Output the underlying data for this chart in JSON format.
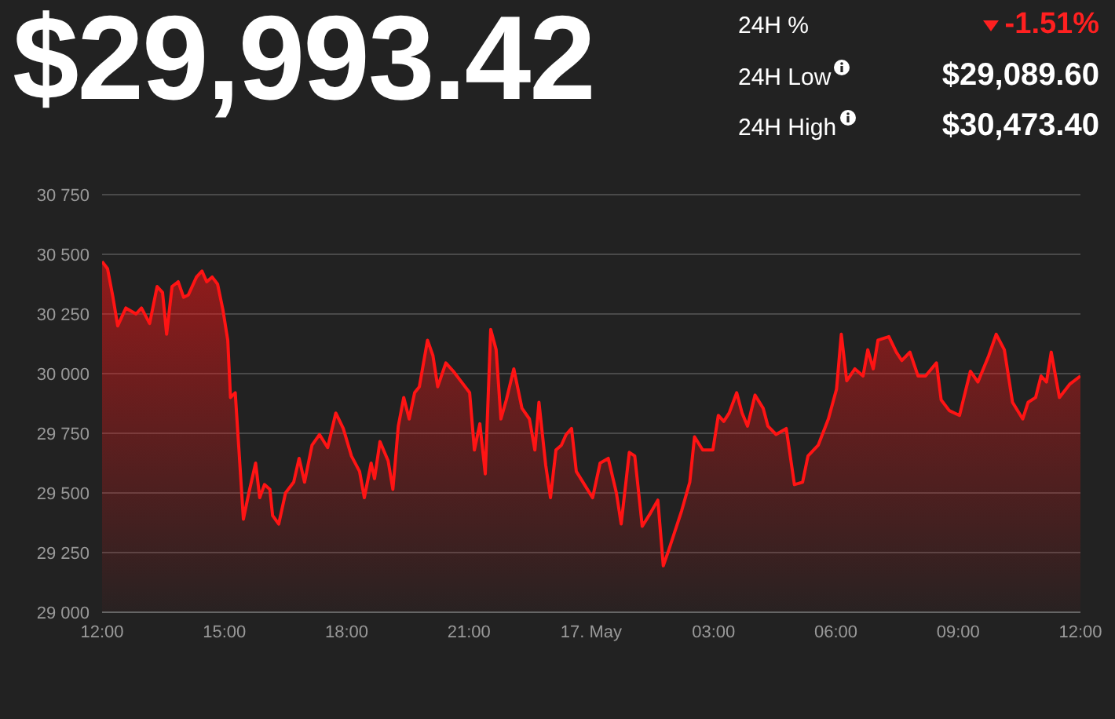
{
  "chart_data": {
    "type": "area",
    "title": "$29,993.42",
    "annotations": [
      "24H %",
      "-1.51%",
      "24H Low",
      "$29,089.60",
      "24H High",
      "$30,473.40"
    ],
    "x": [
      "--05-16T12:00",
      "--05-16T12:08",
      "--05-16T12:16",
      "--05-16T12:23",
      "--05-16T12:35",
      "--05-16T12:50",
      "--05-16T12:58",
      "--05-16T13:10",
      "--05-16T13:21",
      "--05-16T13:29",
      "--05-16T13:35",
      "--05-16T13:43",
      "--05-16T13:52",
      "--05-16T14:00",
      "--05-16T14:07",
      "--05-16T14:19",
      "--05-16T14:27",
      "--05-16T14:34",
      "--05-16T14:42",
      "--05-16T14:50",
      "--05-16T14:58",
      "--05-16T15:05",
      "--05-16T15:09",
      "--05-16T15:16",
      "--05-16T15:21",
      "--05-16T15:28",
      "--05-16T15:36",
      "--05-16T15:46",
      "--05-16T15:52",
      "--05-16T15:59",
      "--05-16T16:07",
      "--05-16T16:11",
      "--05-16T16:20",
      "--05-16T16:30",
      "--05-16T16:42",
      "--05-16T16:50",
      "--05-16T16:58",
      "--05-16T17:09",
      "--05-16T17:20",
      "--05-16T17:32",
      "--05-16T17:44",
      "--05-16T17:55",
      "--05-16T18:07",
      "--05-16T18:19",
      "--05-16T18:26",
      "--05-16T18:36",
      "--05-16T18:41",
      "--05-16T18:49",
      "--05-16T19:01",
      "--05-16T19:08",
      "--05-16T19:16",
      "--05-16T19:24",
      "--05-16T19:32",
      "--05-16T19:40",
      "--05-16T19:47",
      "--05-16T19:59",
      "--05-16T20:07",
      "--05-16T20:14",
      "--05-16T20:26",
      "--05-16T20:37",
      "--05-16T20:49",
      "--05-16T21:01",
      "--05-16T21:08",
      "--05-16T21:16",
      "--05-16T21:24",
      "--05-16T21:32",
      "--05-16T21:40",
      "--05-16T21:47",
      "--05-16T21:55",
      "--05-16T22:06",
      "--05-16T22:18",
      "--05-16T22:29",
      "--05-16T22:37",
      "--05-16T22:43",
      "--05-16T22:53",
      "--05-16T23:00",
      "--05-16T23:08",
      "--05-16T23:16",
      "--05-16T23:23",
      "--05-16T23:31",
      "--05-16T23:38",
      "--05-17T00:02",
      "--05-17T00:13",
      "--05-17T00:25",
      "--05-17T00:37",
      "--05-17T00:44",
      "--05-17T00:56",
      "--05-17T01:04",
      "--05-17T01:15",
      "--05-17T01:27",
      "--05-17T01:38",
      "--05-17T01:46",
      "--05-17T01:54",
      "--05-17T02:13",
      "--05-17T02:25",
      "--05-17T02:32",
      "--05-17T02:44",
      "--05-17T02:59",
      "--05-17T03:07",
      "--05-17T03:15",
      "--05-17T03:23",
      "--05-17T03:34",
      "--05-17T03:42",
      "--05-17T03:50",
      "--05-17T04:01",
      "--05-17T04:13",
      "--05-17T04:20",
      "--05-17T04:32",
      "--05-17T04:47",
      "--05-17T04:59",
      "--05-17T05:11",
      "--05-17T05:19",
      "--05-17T05:34",
      "--05-17T05:49",
      "--05-17T06:01",
      "--05-17T06:08",
      "--05-17T06:16",
      "--05-17T06:28",
      "--05-17T06:40",
      "--05-17T06:47",
      "--05-17T06:55",
      "--05-17T07:02",
      "--05-17T07:18",
      "--05-17T07:29",
      "--05-17T07:37",
      "--05-17T07:49",
      "--05-17T08:01",
      "--05-17T08:12",
      "--05-17T08:28",
      "--05-17T08:35",
      "--05-17T08:47",
      "--05-17T09:02",
      "--05-17T09:18",
      "--05-17T09:29",
      "--05-17T09:45",
      "--05-17T09:56",
      "--05-17T10:08",
      "--05-17T10:20",
      "--05-17T10:35",
      "--05-17T10:43",
      "--05-17T10:54",
      "--05-17T11:02",
      "--05-17T11:10",
      "--05-17T11:17",
      "--05-17T11:29",
      "--05-17T11:44",
      "--05-17T12:00"
    ],
    "series": [
      {
        "color": "#ff1414",
        "values": [
          30470,
          30440,
          30320,
          30200,
          30275,
          30250,
          30275,
          30210,
          30365,
          30340,
          30165,
          30365,
          30385,
          30320,
          30330,
          30405,
          30430,
          30385,
          30405,
          30375,
          30265,
          30140,
          29900,
          29920,
          29700,
          29390,
          29500,
          29625,
          29480,
          29535,
          29515,
          29405,
          29370,
          29500,
          29545,
          29645,
          29545,
          29700,
          29745,
          29690,
          29835,
          29770,
          29655,
          29590,
          29480,
          29625,
          29560,
          29715,
          29635,
          29515,
          29780,
          29900,
          29810,
          29920,
          29945,
          30140,
          30075,
          29945,
          30045,
          30010,
          29965,
          29920,
          29680,
          29790,
          29580,
          30185,
          30100,
          29810,
          29890,
          30020,
          29855,
          29810,
          29680,
          29880,
          29615,
          29480,
          29680,
          29700,
          29745,
          29770,
          29590,
          29480,
          29625,
          29645,
          29500,
          29370,
          29670,
          29655,
          29360,
          29415,
          29470,
          29195,
          29260,
          29425,
          29545,
          29735,
          29680,
          29680,
          29825,
          29800,
          29835,
          29920,
          29835,
          29780,
          29910,
          29855,
          29780,
          29745,
          29770,
          29535,
          29545,
          29655,
          29700,
          29810,
          29935,
          30165,
          29970,
          30020,
          29990,
          30100,
          30020,
          30140,
          30155,
          30090,
          30055,
          30090,
          29990,
          29990,
          30045,
          29890,
          29845,
          29825,
          30010,
          29965,
          30075,
          30165,
          30100,
          29880,
          29810,
          29880,
          29900,
          29990,
          29965,
          30090,
          29900,
          29955,
          29990
        ]
      }
    ],
    "xlim": [
      "--05-16T12:00",
      "--05-17T12:00"
    ],
    "xticks": [
      {
        "value": "--05-16T12:00",
        "label": "12:00"
      },
      {
        "value": "--05-16T15:00",
        "label": "15:00"
      },
      {
        "value": "--05-16T18:00",
        "label": "18:00"
      },
      {
        "value": "--05-16T21:00",
        "label": "21:00"
      },
      {
        "value": "--05-17T00:00",
        "label": "17. May"
      },
      {
        "value": "--05-17T03:00",
        "label": "03:00"
      },
      {
        "value": "--05-17T06:00",
        "label": "06:00"
      },
      {
        "value": "--05-17T09:00",
        "label": "09:00"
      },
      {
        "value": "--05-17T12:00",
        "label": "12:00"
      }
    ],
    "ylim": [
      29000,
      30750
    ],
    "yticks": [
      {
        "value": 29000,
        "label": "29 000"
      },
      {
        "value": 29250,
        "label": "29 250"
      },
      {
        "value": 29500,
        "label": "29 500"
      },
      {
        "value": 29750,
        "label": "29 750"
      },
      {
        "value": 30000,
        "label": "30 000"
      },
      {
        "value": 30250,
        "label": "30 250"
      },
      {
        "value": 30500,
        "label": "30 500"
      },
      {
        "value": 30750,
        "label": "30 750"
      }
    ],
    "grid": "y"
  }
}
